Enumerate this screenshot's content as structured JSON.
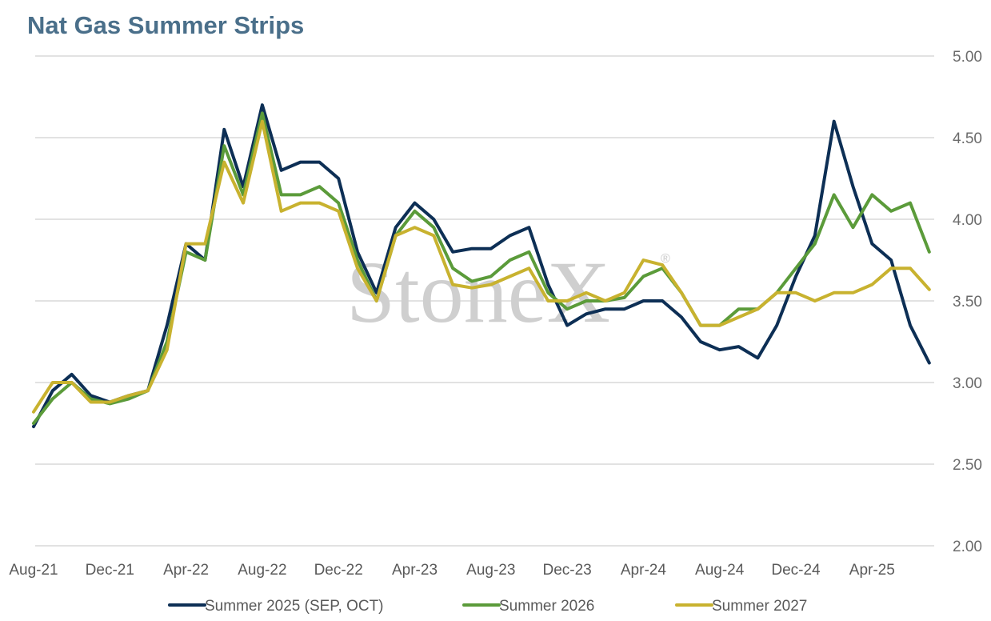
{
  "chart_data": {
    "type": "line",
    "title": "Nat Gas Summer Strips",
    "watermark": "StoneX",
    "watermark_mark": "®",
    "ylim": [
      2.0,
      5.0
    ],
    "y_ticks": [
      "2.00",
      "2.50",
      "3.00",
      "3.50",
      "4.00",
      "4.50",
      "5.00"
    ],
    "y_axis_position": "right",
    "grid": true,
    "x_ticks": [
      "Aug-21",
      "Dec-21",
      "Apr-22",
      "Aug-22",
      "Dec-22",
      "Apr-23",
      "Aug-23",
      "Dec-23",
      "Apr-24",
      "Aug-24",
      "Dec-24",
      "Apr-25"
    ],
    "legend_position": "bottom",
    "x": [
      "2021-08-01",
      "2021-09-01",
      "2021-10-01",
      "2021-11-01",
      "2021-12-01",
      "2022-01-01",
      "2022-02-01",
      "2022-03-01",
      "2022-04-01",
      "2022-05-01",
      "2022-06-01",
      "2022-07-01",
      "2022-08-01",
      "2022-09-01",
      "2022-10-01",
      "2022-11-01",
      "2022-12-01",
      "2023-01-01",
      "2023-02-01",
      "2023-03-01",
      "2023-04-01",
      "2023-05-01",
      "2023-06-01",
      "2023-07-01",
      "2023-08-01",
      "2023-09-01",
      "2023-10-01",
      "2023-11-01",
      "2023-12-01",
      "2024-01-01",
      "2024-02-01",
      "2024-03-01",
      "2024-04-01",
      "2024-05-01",
      "2024-06-01",
      "2024-07-01",
      "2024-08-01",
      "2024-09-01",
      "2024-10-01",
      "2024-11-01",
      "2024-12-01",
      "2025-01-01",
      "2025-02-01",
      "2025-03-01",
      "2025-04-01",
      "2025-05-01",
      "2025-06-01",
      "2025-07-01"
    ],
    "series": [
      {
        "name": "Summer 2025 (SEP, OCT)",
        "color": "#0d2f55",
        "values": [
          2.73,
          2.95,
          3.05,
          2.92,
          2.88,
          2.92,
          2.95,
          3.35,
          3.85,
          3.75,
          4.55,
          4.2,
          4.7,
          4.3,
          4.35,
          4.35,
          4.25,
          3.8,
          3.55,
          3.95,
          4.1,
          4.0,
          3.8,
          3.82,
          3.82,
          3.9,
          3.95,
          3.6,
          3.35,
          3.42,
          3.45,
          3.45,
          3.5,
          3.5,
          3.4,
          3.25,
          3.2,
          3.22,
          3.15,
          3.35,
          3.65,
          3.9,
          4.6,
          4.2,
          3.85,
          3.75,
          3.35,
          3.12
        ]
      },
      {
        "name": "Summer 2026",
        "color": "#5b9b3a",
        "values": [
          2.75,
          2.9,
          3.0,
          2.9,
          2.87,
          2.9,
          2.95,
          3.25,
          3.8,
          3.75,
          4.45,
          4.15,
          4.65,
          4.15,
          4.15,
          4.2,
          4.1,
          3.75,
          3.5,
          3.9,
          4.05,
          3.95,
          3.7,
          3.62,
          3.65,
          3.75,
          3.8,
          3.55,
          3.45,
          3.5,
          3.5,
          3.52,
          3.65,
          3.7,
          3.55,
          3.35,
          3.35,
          3.45,
          3.45,
          3.55,
          3.7,
          3.85,
          4.15,
          3.95,
          4.15,
          4.05,
          4.1,
          3.8
        ]
      },
      {
        "name": "Summer 2027",
        "color": "#c8b22f",
        "values": [
          2.82,
          3.0,
          3.0,
          2.88,
          2.88,
          2.92,
          2.95,
          3.2,
          3.85,
          3.85,
          4.35,
          4.1,
          4.6,
          4.05,
          4.1,
          4.1,
          4.05,
          3.7,
          3.5,
          3.9,
          3.95,
          3.9,
          3.6,
          3.58,
          3.6,
          3.65,
          3.7,
          3.5,
          3.5,
          3.55,
          3.5,
          3.55,
          3.75,
          3.72,
          3.55,
          3.35,
          3.35,
          3.4,
          3.45,
          3.55,
          3.55,
          3.5,
          3.55,
          3.55,
          3.6,
          3.7,
          3.7,
          3.57
        ]
      }
    ]
  }
}
